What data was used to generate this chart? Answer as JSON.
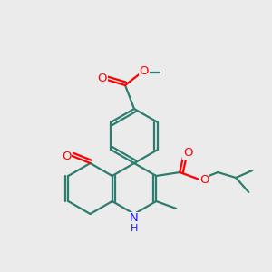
{
  "bg_color": "#ebebeb",
  "bond_color": "#2d7d6e",
  "bond_width": 1.6,
  "atom_colors": {
    "O": "#ff0000",
    "N": "#1a1aff",
    "C": "#2d7d6e"
  },
  "font_size": 9.5,
  "scale": 1.0
}
